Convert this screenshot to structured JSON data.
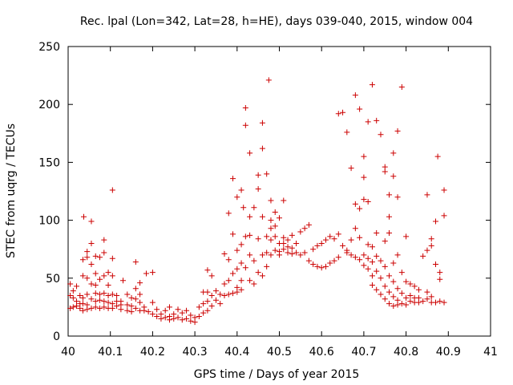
{
  "chart_data": {
    "type": "scatter",
    "title": "Rec. lpal (Lon=342, Lat=28, h=HE), days 039-040, 2015, window 004",
    "xlabel": "GPS time / Days of year 2015",
    "ylabel": "STEC from uqrg / TECUs",
    "xlim": [
      40,
      41
    ],
    "ylim": [
      0,
      250
    ],
    "x_ticks": [
      40,
      40.1,
      40.2,
      40.3,
      40.4,
      40.5,
      40.6,
      40.7,
      40.8,
      40.9,
      41
    ],
    "x_tick_labels": [
      "40",
      "40.1",
      "40.2",
      "40.3",
      "40.4",
      "40.5",
      "40.6",
      "40.7",
      "40.8",
      "40.9",
      "41"
    ],
    "y_ticks": [
      0,
      50,
      100,
      150,
      200,
      250
    ],
    "y_tick_labels": [
      "0",
      "50",
      "100",
      "150",
      "200",
      "250"
    ],
    "marker": "+",
    "color": "#cc0000",
    "series": [
      {
        "name": "STEC",
        "points": [
          [
            40.005,
            45
          ],
          [
            40.005,
            35
          ],
          [
            40.005,
            24
          ],
          [
            40.012,
            39
          ],
          [
            40.012,
            33
          ],
          [
            40.012,
            25
          ],
          [
            40.02,
            43
          ],
          [
            40.02,
            30
          ],
          [
            40.02,
            26
          ],
          [
            40.028,
            28
          ],
          [
            40.028,
            24
          ],
          [
            40.028,
            35
          ],
          [
            40.035,
            66
          ],
          [
            40.035,
            52
          ],
          [
            40.035,
            33
          ],
          [
            40.035,
            28
          ],
          [
            40.035,
            22
          ],
          [
            40.037,
            103
          ],
          [
            40.045,
            73
          ],
          [
            40.045,
            68
          ],
          [
            40.045,
            50
          ],
          [
            40.045,
            36
          ],
          [
            40.045,
            27
          ],
          [
            40.045,
            23
          ],
          [
            40.055,
            80
          ],
          [
            40.055,
            99
          ],
          [
            40.055,
            62
          ],
          [
            40.055,
            45
          ],
          [
            40.055,
            32
          ],
          [
            40.055,
            24
          ],
          [
            40.065,
            69
          ],
          [
            40.065,
            54
          ],
          [
            40.065,
            44
          ],
          [
            40.065,
            37
          ],
          [
            40.065,
            30
          ],
          [
            40.065,
            25
          ],
          [
            40.075,
            68
          ],
          [
            40.075,
            49
          ],
          [
            40.075,
            36
          ],
          [
            40.075,
            31
          ],
          [
            40.075,
            24
          ],
          [
            40.085,
            83
          ],
          [
            40.085,
            72
          ],
          [
            40.085,
            52
          ],
          [
            40.085,
            37
          ],
          [
            40.085,
            30
          ],
          [
            40.085,
            25
          ],
          [
            40.095,
            55
          ],
          [
            40.095,
            44
          ],
          [
            40.095,
            35
          ],
          [
            40.095,
            29
          ],
          [
            40.095,
            24
          ],
          [
            40.105,
            126
          ],
          [
            40.105,
            67
          ],
          [
            40.105,
            52
          ],
          [
            40.105,
            36
          ],
          [
            40.105,
            28
          ],
          [
            40.105,
            24
          ],
          [
            40.115,
            35
          ],
          [
            40.115,
            30
          ],
          [
            40.115,
            26
          ],
          [
            40.125,
            30
          ],
          [
            40.125,
            27
          ],
          [
            40.125,
            23
          ],
          [
            40.13,
            48
          ],
          [
            40.14,
            36
          ],
          [
            40.14,
            27
          ],
          [
            40.14,
            22
          ],
          [
            40.15,
            33
          ],
          [
            40.15,
            26
          ],
          [
            40.15,
            21
          ],
          [
            40.16,
            64
          ],
          [
            40.16,
            41
          ],
          [
            40.16,
            32
          ],
          [
            40.16,
            24
          ],
          [
            40.17,
            46
          ],
          [
            40.17,
            36
          ],
          [
            40.17,
            29
          ],
          [
            40.17,
            22
          ],
          [
            40.18,
            25
          ],
          [
            40.18,
            22
          ],
          [
            40.185,
            54
          ],
          [
            40.19,
            21
          ],
          [
            40.2,
            55
          ],
          [
            40.2,
            29
          ],
          [
            40.2,
            19
          ],
          [
            40.21,
            23
          ],
          [
            40.21,
            17
          ],
          [
            40.22,
            19
          ],
          [
            40.22,
            15
          ],
          [
            40.23,
            22
          ],
          [
            40.23,
            16
          ],
          [
            40.24,
            25
          ],
          [
            40.24,
            17
          ],
          [
            40.24,
            14
          ],
          [
            40.25,
            19
          ],
          [
            40.25,
            15
          ],
          [
            40.26,
            23
          ],
          [
            40.26,
            16
          ],
          [
            40.27,
            20
          ],
          [
            40.27,
            14
          ],
          [
            40.28,
            22
          ],
          [
            40.28,
            15
          ],
          [
            40.29,
            18
          ],
          [
            40.29,
            13
          ],
          [
            40.3,
            16
          ],
          [
            40.3,
            12
          ],
          [
            40.31,
            25
          ],
          [
            40.31,
            17
          ],
          [
            40.32,
            38
          ],
          [
            40.32,
            28
          ],
          [
            40.32,
            20
          ],
          [
            40.33,
            57
          ],
          [
            40.33,
            38
          ],
          [
            40.33,
            30
          ],
          [
            40.33,
            22
          ],
          [
            40.34,
            52
          ],
          [
            40.34,
            35
          ],
          [
            40.34,
            26
          ],
          [
            40.35,
            39
          ],
          [
            40.35,
            31
          ],
          [
            40.36,
            36
          ],
          [
            40.36,
            28
          ],
          [
            40.37,
            71
          ],
          [
            40.37,
            45
          ],
          [
            40.37,
            35
          ],
          [
            40.38,
            106
          ],
          [
            40.38,
            66
          ],
          [
            40.38,
            48
          ],
          [
            40.38,
            36
          ],
          [
            40.39,
            136
          ],
          [
            40.39,
            88
          ],
          [
            40.39,
            54
          ],
          [
            40.39,
            37
          ],
          [
            40.4,
            120
          ],
          [
            40.4,
            74
          ],
          [
            40.4,
            58
          ],
          [
            40.4,
            42
          ],
          [
            40.4,
            38
          ],
          [
            40.41,
            126
          ],
          [
            40.41,
            79
          ],
          [
            40.41,
            63
          ],
          [
            40.41,
            48
          ],
          [
            40.41,
            40
          ],
          [
            40.415,
            111
          ],
          [
            40.42,
            197
          ],
          [
            40.42,
            182
          ],
          [
            40.42,
            86
          ],
          [
            40.42,
            59
          ],
          [
            40.43,
            158
          ],
          [
            40.43,
            103
          ],
          [
            40.43,
            87
          ],
          [
            40.43,
            70
          ],
          [
            40.43,
            48
          ],
          [
            40.44,
            111
          ],
          [
            40.44,
            65
          ],
          [
            40.44,
            45
          ],
          [
            40.45,
            139
          ],
          [
            40.45,
            127
          ],
          [
            40.45,
            84
          ],
          [
            40.45,
            55
          ],
          [
            40.46,
            184
          ],
          [
            40.46,
            162
          ],
          [
            40.46,
            103
          ],
          [
            40.46,
            70
          ],
          [
            40.46,
            52
          ],
          [
            40.47,
            140
          ],
          [
            40.47,
            86
          ],
          [
            40.47,
            72
          ],
          [
            40.47,
            60
          ],
          [
            40.475,
            221
          ],
          [
            40.48,
            117
          ],
          [
            40.48,
            100
          ],
          [
            40.48,
            93
          ],
          [
            40.48,
            83
          ],
          [
            40.48,
            70
          ],
          [
            40.49,
            107
          ],
          [
            40.49,
            95
          ],
          [
            40.49,
            86
          ],
          [
            40.49,
            74
          ],
          [
            40.5,
            102
          ],
          [
            40.5,
            80
          ],
          [
            40.5,
            73
          ],
          [
            40.5,
            70
          ],
          [
            40.51,
            117
          ],
          [
            40.51,
            85
          ],
          [
            40.51,
            80
          ],
          [
            40.51,
            75
          ],
          [
            40.52,
            83
          ],
          [
            40.52,
            77
          ],
          [
            40.52,
            72
          ],
          [
            40.53,
            87
          ],
          [
            40.53,
            76
          ],
          [
            40.53,
            71
          ],
          [
            40.54,
            80
          ],
          [
            40.54,
            72
          ],
          [
            40.55,
            90
          ],
          [
            40.55,
            70
          ],
          [
            40.56,
            93
          ],
          [
            40.56,
            72
          ],
          [
            40.57,
            96
          ],
          [
            40.57,
            65
          ],
          [
            40.58,
            75
          ],
          [
            40.58,
            62
          ],
          [
            40.59,
            78
          ],
          [
            40.59,
            60
          ],
          [
            40.6,
            80
          ],
          [
            40.6,
            59
          ],
          [
            40.61,
            83
          ],
          [
            40.61,
            60
          ],
          [
            40.62,
            86
          ],
          [
            40.62,
            63
          ],
          [
            40.63,
            84
          ],
          [
            40.63,
            65
          ],
          [
            40.64,
            192
          ],
          [
            40.64,
            88
          ],
          [
            40.64,
            68
          ],
          [
            40.65,
            193
          ],
          [
            40.65,
            78
          ],
          [
            40.66,
            176
          ],
          [
            40.66,
            74
          ],
          [
            40.66,
            72
          ],
          [
            40.67,
            145
          ],
          [
            40.67,
            83
          ],
          [
            40.67,
            70
          ],
          [
            40.68,
            208
          ],
          [
            40.68,
            114
          ],
          [
            40.68,
            93
          ],
          [
            40.68,
            68
          ],
          [
            40.69,
            196
          ],
          [
            40.69,
            110
          ],
          [
            40.69,
            85
          ],
          [
            40.69,
            66
          ],
          [
            40.7,
            155
          ],
          [
            40.7,
            137
          ],
          [
            40.7,
            118
          ],
          [
            40.7,
            70
          ],
          [
            40.7,
            61
          ],
          [
            40.71,
            185
          ],
          [
            40.71,
            116
          ],
          [
            40.71,
            79
          ],
          [
            40.71,
            67
          ],
          [
            40.71,
            58
          ],
          [
            40.72,
            217
          ],
          [
            40.72,
            77
          ],
          [
            40.72,
            64
          ],
          [
            40.72,
            52
          ],
          [
            40.72,
            44
          ],
          [
            40.73,
            186
          ],
          [
            40.73,
            89
          ],
          [
            40.73,
            69
          ],
          [
            40.73,
            56
          ],
          [
            40.73,
            40
          ],
          [
            40.74,
            174
          ],
          [
            40.74,
            65
          ],
          [
            40.74,
            50
          ],
          [
            40.74,
            36
          ],
          [
            40.75,
            146
          ],
          [
            40.75,
            142
          ],
          [
            40.75,
            82
          ],
          [
            40.75,
            60
          ],
          [
            40.75,
            43
          ],
          [
            40.75,
            32
          ],
          [
            40.76,
            122
          ],
          [
            40.76,
            103
          ],
          [
            40.76,
            89
          ],
          [
            40.76,
            52
          ],
          [
            40.76,
            38
          ],
          [
            40.76,
            28
          ],
          [
            40.77,
            158
          ],
          [
            40.77,
            138
          ],
          [
            40.77,
            63
          ],
          [
            40.77,
            47
          ],
          [
            40.77,
            34
          ],
          [
            40.77,
            26
          ],
          [
            40.78,
            177
          ],
          [
            40.78,
            120
          ],
          [
            40.78,
            70
          ],
          [
            40.78,
            41
          ],
          [
            40.78,
            31
          ],
          [
            40.78,
            27
          ],
          [
            40.79,
            215
          ],
          [
            40.79,
            55
          ],
          [
            40.79,
            37
          ],
          [
            40.79,
            28
          ],
          [
            40.8,
            86
          ],
          [
            40.8,
            47
          ],
          [
            40.8,
            33
          ],
          [
            40.8,
            27
          ],
          [
            40.81,
            45
          ],
          [
            40.81,
            35
          ],
          [
            40.81,
            30
          ],
          [
            40.82,
            43
          ],
          [
            40.82,
            33
          ],
          [
            40.82,
            29
          ],
          [
            40.83,
            40
          ],
          [
            40.83,
            33
          ],
          [
            40.83,
            29
          ],
          [
            40.84,
            69
          ],
          [
            40.84,
            30
          ],
          [
            40.85,
            122
          ],
          [
            40.85,
            74
          ],
          [
            40.85,
            38
          ],
          [
            40.85,
            32
          ],
          [
            40.86,
            84
          ],
          [
            40.86,
            78
          ],
          [
            40.86,
            34
          ],
          [
            40.86,
            29
          ],
          [
            40.87,
            99
          ],
          [
            40.87,
            62
          ],
          [
            40.87,
            29
          ],
          [
            40.875,
            155
          ],
          [
            40.88,
            55
          ],
          [
            40.88,
            49
          ],
          [
            40.88,
            30
          ],
          [
            40.89,
            126
          ],
          [
            40.89,
            104
          ],
          [
            40.89,
            29
          ]
        ]
      }
    ]
  }
}
